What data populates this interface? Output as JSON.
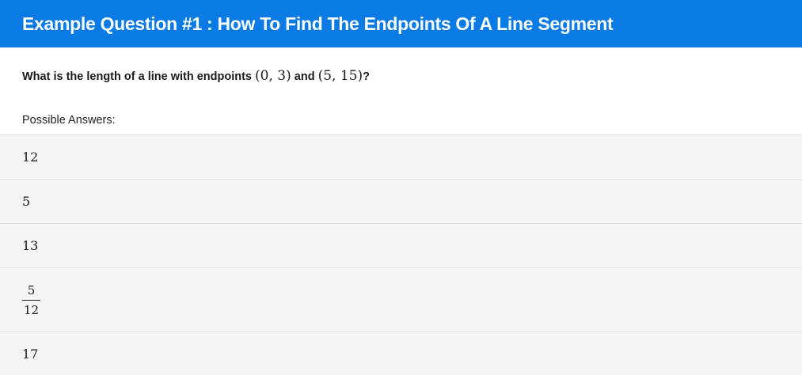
{
  "header": {
    "title": "Example Question #1 : How To Find The Endpoints Of A Line Segment"
  },
  "question": {
    "text_before": "What is the length of a line with endpoints ",
    "point_a": "(0, 3)",
    "text_middle": " and ",
    "point_b": "(5, 15)",
    "text_after": "?"
  },
  "possible_answers_label": "Possible Answers:",
  "answers": [
    {
      "text": "12"
    },
    {
      "text": "5"
    },
    {
      "text": "13"
    },
    {
      "numerator": "5",
      "denominator": "12"
    },
    {
      "text": "17"
    }
  ],
  "colors": {
    "header_bg": "#0a7be5",
    "answer_bg": "#f5f5f5"
  }
}
